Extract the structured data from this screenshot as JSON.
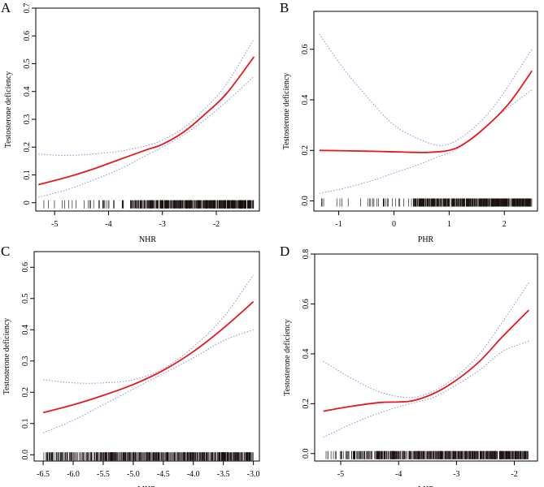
{
  "figure_title": "",
  "chart_data": [
    {
      "panel_label": "A",
      "type": "line",
      "xlabel": "NHR",
      "ylabel": "Testosterone deficiency",
      "xlim": [
        -5.35,
        -1.2
      ],
      "ylim": [
        -0.03,
        0.7
      ],
      "xticks": [
        -5,
        -4,
        -3,
        -2
      ],
      "yticks": [
        0,
        0.1,
        0.2,
        0.3,
        0.4,
        0.5,
        0.6,
        0.7
      ],
      "ytick_labels": [
        "0",
        "0.1",
        "0.2",
        "0.3",
        "0.4",
        "0.5",
        "0.6",
        "0.7"
      ],
      "series": [
        {
          "name": "estimate",
          "color": "#e41a1c",
          "style": "solid",
          "x": [
            -5.3,
            -4.8,
            -4.3,
            -3.8,
            -3.3,
            -3.0,
            -2.6,
            -2.2,
            -1.8,
            -1.3
          ],
          "y": [
            0.065,
            0.09,
            0.12,
            0.155,
            0.19,
            0.21,
            0.255,
            0.32,
            0.395,
            0.525
          ]
        },
        {
          "name": "upper 95% CI",
          "color": "#8c8fd0",
          "style": "dotted",
          "x": [
            -5.3,
            -4.8,
            -4.3,
            -3.8,
            -3.3,
            -3.0,
            -2.6,
            -2.2,
            -1.8,
            -1.3
          ],
          "y": [
            0.175,
            0.17,
            0.175,
            0.185,
            0.205,
            0.225,
            0.27,
            0.34,
            0.43,
            0.59
          ]
        },
        {
          "name": "lower 95% CI",
          "color": "#8c8fd0",
          "style": "dotted",
          "x": [
            -5.3,
            -4.8,
            -4.3,
            -3.8,
            -3.3,
            -3.0,
            -2.6,
            -2.2,
            -1.8,
            -1.3
          ],
          "y": [
            0.02,
            0.045,
            0.08,
            0.12,
            0.17,
            0.2,
            0.245,
            0.3,
            0.365,
            0.455
          ]
        }
      ],
      "rug": {
        "from": -5.2,
        "to": -1.3,
        "dense_from": -3.6
      }
    },
    {
      "panel_label": "B",
      "type": "line",
      "xlabel": "PHR",
      "ylabel": "Testosterone deficiency",
      "xlim": [
        -1.45,
        2.6
      ],
      "ylim": [
        -0.04,
        0.75
      ],
      "xticks": [
        -1,
        0,
        1,
        2
      ],
      "yticks": [
        0,
        0.2,
        0.4,
        0.6
      ],
      "ytick_labels": [
        "0.0",
        "0.2",
        "0.4",
        "0.6"
      ],
      "series": [
        {
          "name": "estimate",
          "color": "#e41a1c",
          "style": "solid",
          "x": [
            -1.35,
            -0.8,
            -0.3,
            0.2,
            0.6,
            1.0,
            1.3,
            1.7,
            2.1,
            2.5
          ],
          "y": [
            0.2,
            0.198,
            0.196,
            0.193,
            0.192,
            0.2,
            0.23,
            0.3,
            0.39,
            0.515
          ]
        },
        {
          "name": "upper 95% CI",
          "color": "#8c8fd0",
          "style": "dotted",
          "x": [
            -1.35,
            -0.9,
            -0.4,
            0.0,
            0.4,
            0.8,
            1.1,
            1.5,
            1.9,
            2.5
          ],
          "y": [
            0.66,
            0.52,
            0.39,
            0.3,
            0.25,
            0.22,
            0.235,
            0.3,
            0.4,
            0.6
          ]
        },
        {
          "name": "lower 95% CI",
          "color": "#8c8fd0",
          "style": "dotted",
          "x": [
            -1.35,
            -0.9,
            -0.4,
            0.0,
            0.4,
            0.8,
            1.1,
            1.5,
            1.9,
            2.5
          ],
          "y": [
            0.03,
            0.05,
            0.08,
            0.11,
            0.14,
            0.175,
            0.2,
            0.26,
            0.34,
            0.44
          ]
        }
      ],
      "rug": {
        "from": -1.35,
        "to": 2.5,
        "dense_from": 0.35
      }
    },
    {
      "panel_label": "C",
      "type": "line",
      "xlabel": "MHR",
      "ylabel": "Testosterone deficiency",
      "xlim": [
        -6.65,
        -2.9
      ],
      "ylim": [
        -0.02,
        0.65
      ],
      "xticks": [
        -6.5,
        -6.0,
        -5.5,
        -5.0,
        -4.5,
        -4.0,
        -3.5,
        -3.0
      ],
      "xtick_labels": [
        "-6.5",
        "-6.0",
        "-5.5",
        "-5.0",
        "-4.5",
        "-4.0",
        "-3.5",
        "-3.0"
      ],
      "yticks": [
        0,
        0.1,
        0.2,
        0.3,
        0.4,
        0.5,
        0.6
      ],
      "ytick_labels": [
        "0.0",
        "0.1",
        "0.2",
        "0.3",
        "0.4",
        "0.5",
        "0.6"
      ],
      "series": [
        {
          "name": "estimate",
          "color": "#e41a1c",
          "style": "solid",
          "x": [
            -6.5,
            -6.0,
            -5.5,
            -5.0,
            -4.5,
            -4.0,
            -3.5,
            -3.0
          ],
          "y": [
            0.135,
            0.16,
            0.19,
            0.225,
            0.27,
            0.33,
            0.405,
            0.49
          ]
        },
        {
          "name": "upper 95% CI",
          "color": "#8c8fd0",
          "style": "dotted",
          "x": [
            -6.5,
            -6.0,
            -5.5,
            -5.0,
            -4.5,
            -4.0,
            -3.5,
            -3.0
          ],
          "y": [
            0.24,
            0.23,
            0.23,
            0.24,
            0.275,
            0.345,
            0.44,
            0.575
          ]
        },
        {
          "name": "lower 95% CI",
          "color": "#8c8fd0",
          "style": "dotted",
          "x": [
            -6.5,
            -6.0,
            -5.5,
            -5.0,
            -4.5,
            -4.0,
            -3.5,
            -3.0
          ],
          "y": [
            0.07,
            0.11,
            0.16,
            0.21,
            0.26,
            0.31,
            0.365,
            0.4
          ]
        }
      ],
      "rug": {
        "from": -6.5,
        "to": -3.0,
        "dense_from": -6.2
      }
    },
    {
      "panel_label": "D",
      "type": "line",
      "xlabel": "LHR",
      "ylabel": "Testosterone deficiency",
      "xlim": [
        -5.45,
        -1.6
      ],
      "ylim": [
        -0.03,
        0.8
      ],
      "xticks": [
        -5,
        -4,
        -3,
        -2
      ],
      "yticks": [
        0,
        0.2,
        0.4,
        0.6,
        0.8
      ],
      "ytick_labels": [
        "0.0",
        "0.2",
        "0.4",
        "0.6",
        "0.8"
      ],
      "series": [
        {
          "name": "estimate",
          "color": "#e41a1c",
          "style": "solid",
          "x": [
            -5.3,
            -4.8,
            -4.3,
            -3.8,
            -3.4,
            -3.0,
            -2.6,
            -2.2,
            -1.75
          ],
          "y": [
            0.17,
            0.19,
            0.205,
            0.21,
            0.24,
            0.295,
            0.37,
            0.47,
            0.575
          ]
        },
        {
          "name": "upper 95% CI",
          "color": "#8c8fd0",
          "style": "dotted",
          "x": [
            -5.3,
            -4.8,
            -4.3,
            -3.8,
            -3.4,
            -3.0,
            -2.6,
            -2.2,
            -1.75
          ],
          "y": [
            0.37,
            0.3,
            0.245,
            0.225,
            0.25,
            0.31,
            0.4,
            0.53,
            0.685
          ]
        },
        {
          "name": "lower 95% CI",
          "color": "#8c8fd0",
          "style": "dotted",
          "x": [
            -5.3,
            -4.8,
            -4.3,
            -3.8,
            -3.4,
            -3.0,
            -2.6,
            -2.2,
            -1.75
          ],
          "y": [
            0.065,
            0.12,
            0.165,
            0.2,
            0.225,
            0.275,
            0.335,
            0.41,
            0.45
          ]
        }
      ],
      "rug": {
        "from": -5.3,
        "to": -1.75,
        "dense_from": -4.7
      }
    }
  ]
}
